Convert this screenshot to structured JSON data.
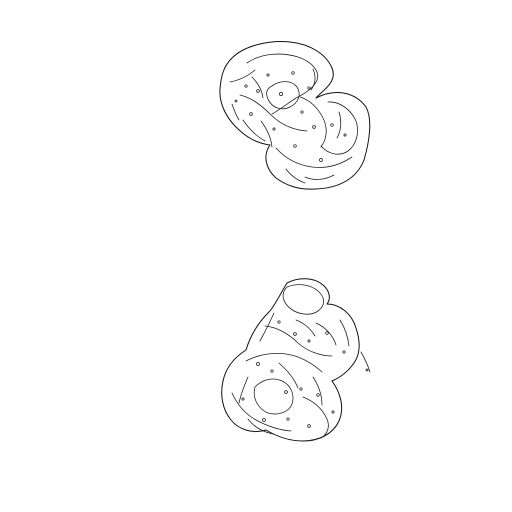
{
  "image": {
    "type": "edge-detected line drawing",
    "background": "#ffffff",
    "line_color": "#111111"
  },
  "objects": [
    {
      "name": "upper-blob-outline"
    },
    {
      "name": "lower-blob-outline"
    }
  ]
}
